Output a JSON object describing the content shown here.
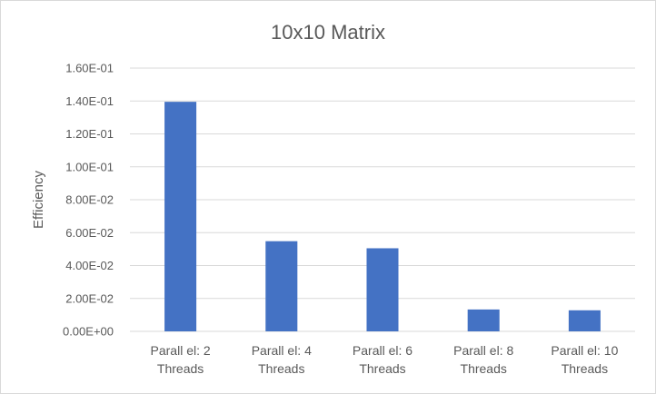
{
  "chart_data": {
    "type": "bar",
    "title": "10x10 Matrix",
    "xlabel": "",
    "ylabel": "Efficiency",
    "categories": [
      [
        "Parall el: 2",
        "Threads"
      ],
      [
        "Parall el: 4",
        "Threads"
      ],
      [
        "Parall el: 6",
        "Threads"
      ],
      [
        "Parall el: 8",
        "Threads"
      ],
      [
        "Parall el: 10",
        "Threads"
      ]
    ],
    "values": [
      0.1395,
      0.0548,
      0.0505,
      0.0133,
      0.0128
    ],
    "ylim": [
      0,
      0.16
    ],
    "yticks": [
      0,
      0.02,
      0.04,
      0.06,
      0.08,
      0.1,
      0.12,
      0.14,
      0.16
    ],
    "ytick_labels": [
      "0.00E+00",
      "2.00E-02",
      "4.00E-02",
      "6.00E-02",
      "8.00E-02",
      "1.00E-01",
      "1.20E-01",
      "1.40E-01",
      "1.60E-01"
    ],
    "grid": true,
    "legend": "none",
    "colors": {
      "bar": "#4472c4",
      "grid": "#d9d9d9",
      "text": "#595959"
    }
  }
}
